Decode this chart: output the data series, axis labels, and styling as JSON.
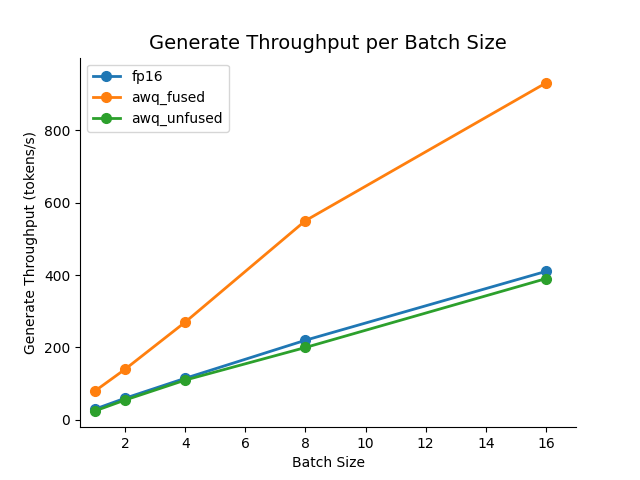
{
  "title": "Generate Throughput per Batch Size",
  "xlabel": "Batch Size",
  "ylabel": "Generate Throughput (tokens/s)",
  "batch_sizes": [
    1,
    2,
    4,
    8,
    16
  ],
  "series": [
    {
      "label": "fp16",
      "color": "#1f77b4",
      "values": [
        30,
        60,
        115,
        220,
        410
      ]
    },
    {
      "label": "awq_fused",
      "color": "#ff7f0e",
      "values": [
        80,
        140,
        270,
        550,
        930
      ]
    },
    {
      "label": "awq_unfused",
      "color": "#2ca02c",
      "values": [
        25,
        55,
        110,
        200,
        390
      ]
    }
  ],
  "xlim": [
    0.5,
    17
  ],
  "ylim": [
    -20,
    1000
  ],
  "xticks": [
    2,
    4,
    6,
    8,
    10,
    12,
    14,
    16
  ],
  "yticks": [
    0,
    200,
    400,
    600,
    800
  ],
  "marker": "o",
  "markersize": 7,
  "linewidth": 2,
  "legend_loc": "upper left",
  "background_color": "#ffffff",
  "title_fontsize": 14,
  "figsize": [
    6.4,
    4.8
  ],
  "dpi": 100
}
